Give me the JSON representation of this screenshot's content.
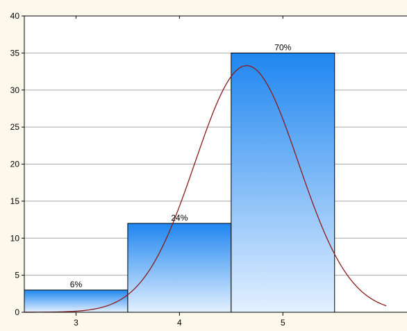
{
  "chart_data": {
    "type": "bar",
    "title": "",
    "xlabel": "",
    "ylabel": "",
    "categories": [
      "3",
      "4",
      "5"
    ],
    "values": [
      3,
      12,
      35
    ],
    "data_labels": [
      "6%",
      "24%",
      "70%"
    ],
    "ylim": [
      0,
      40
    ],
    "yticks": [
      0,
      5,
      10,
      15,
      20,
      25,
      30,
      35,
      40
    ],
    "grid": "horizontal",
    "legend": "none",
    "colors": {
      "bar_top": "#1f86f0",
      "bar_bottom": "#e3f0ff",
      "bar_border": "#000000",
      "curve": "#8b1a1a",
      "grid": "#a8a8a8",
      "page_bg": "#fdf8ec",
      "plot_bg": "#ffffff"
    },
    "fitted_curve": {
      "type": "normal",
      "mean": 4.65,
      "sd": 0.5,
      "peak": 33.3,
      "x_range": [
        2.4,
        6.0
      ]
    }
  }
}
